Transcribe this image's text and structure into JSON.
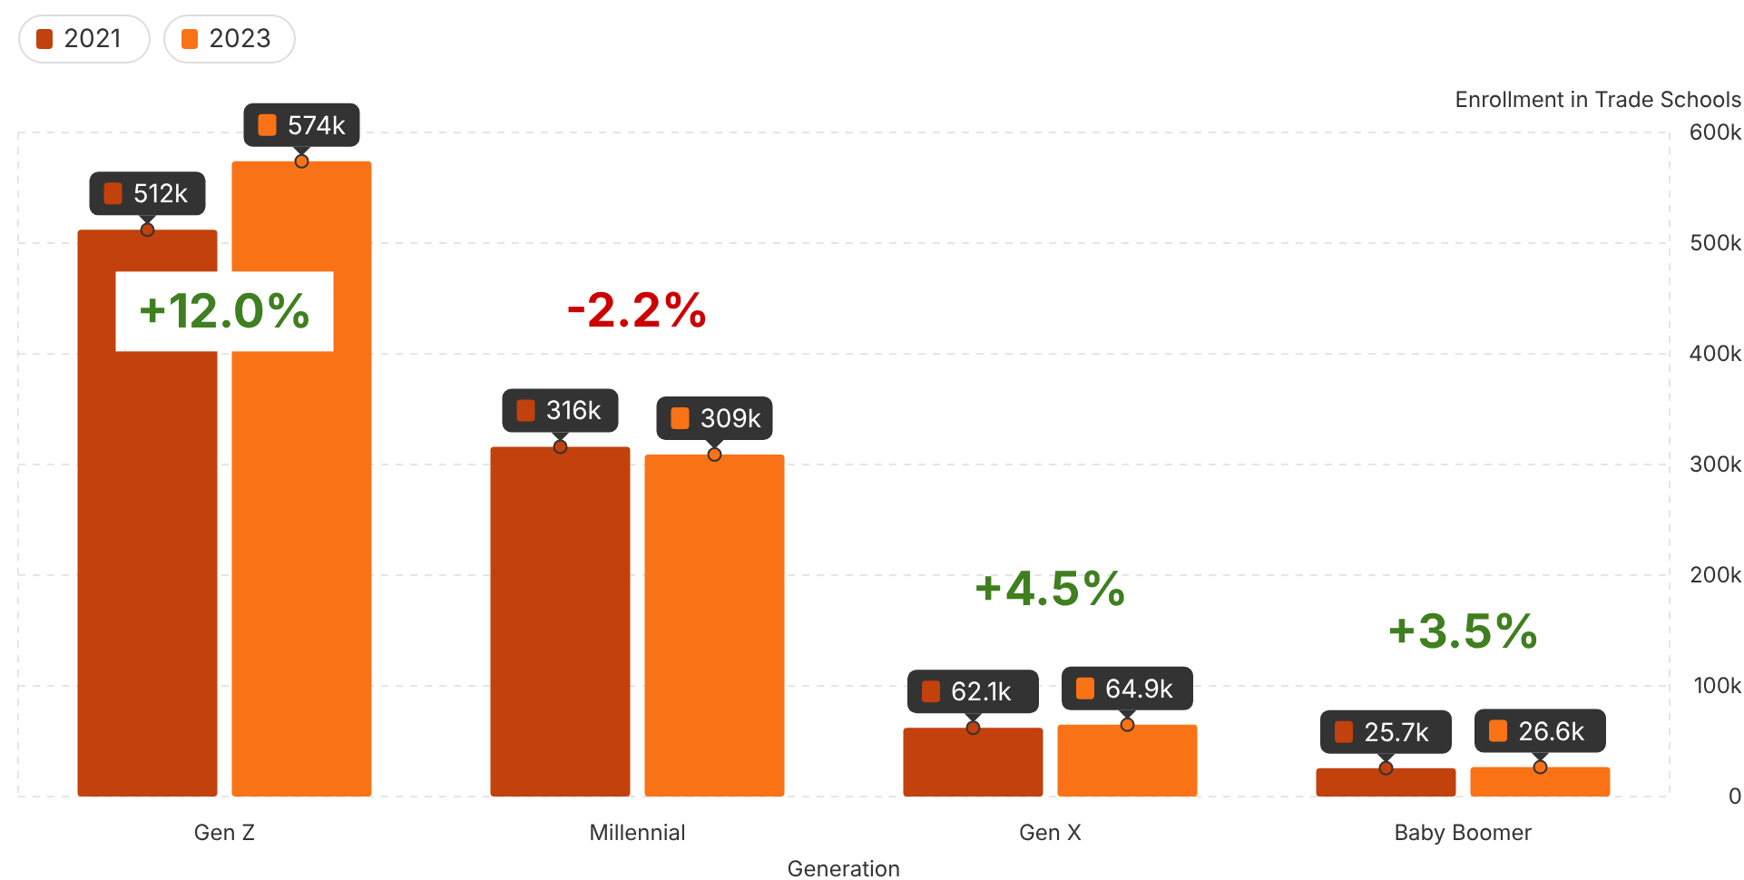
{
  "chart_data": {
    "type": "bar",
    "xlabel": "Generation",
    "ylabel": "Enrollment in Trade Schools",
    "categories": [
      "Gen Z",
      "Millennial",
      "Gen X",
      "Baby Boomer"
    ],
    "series": [
      {
        "name": "2021",
        "color": "#c2410c",
        "values": [
          512000,
          316000,
          62100,
          25700
        ],
        "value_labels": [
          "512k",
          "316k",
          "62.1k",
          "25.7k"
        ]
      },
      {
        "name": "2023",
        "color": "#f97316",
        "values": [
          574000,
          309000,
          64900,
          26600
        ],
        "value_labels": [
          "574k",
          "309k",
          "64.9k",
          "26.6k"
        ]
      }
    ],
    "ylim": [
      0,
      600000
    ],
    "yticks": [
      {
        "value": 0,
        "label": "0"
      },
      {
        "value": 100000,
        "label": "100k"
      },
      {
        "value": 200000,
        "label": "200k"
      },
      {
        "value": 300000,
        "label": "300k"
      },
      {
        "value": 400000,
        "label": "400k"
      },
      {
        "value": 500000,
        "label": "500k"
      },
      {
        "value": 600000,
        "label": "600k"
      }
    ],
    "grid": "y",
    "legend": "top left",
    "annotations": [
      "+12.0%",
      "-2.2%",
      "+4.5%",
      "+3.5%"
    ]
  }
}
